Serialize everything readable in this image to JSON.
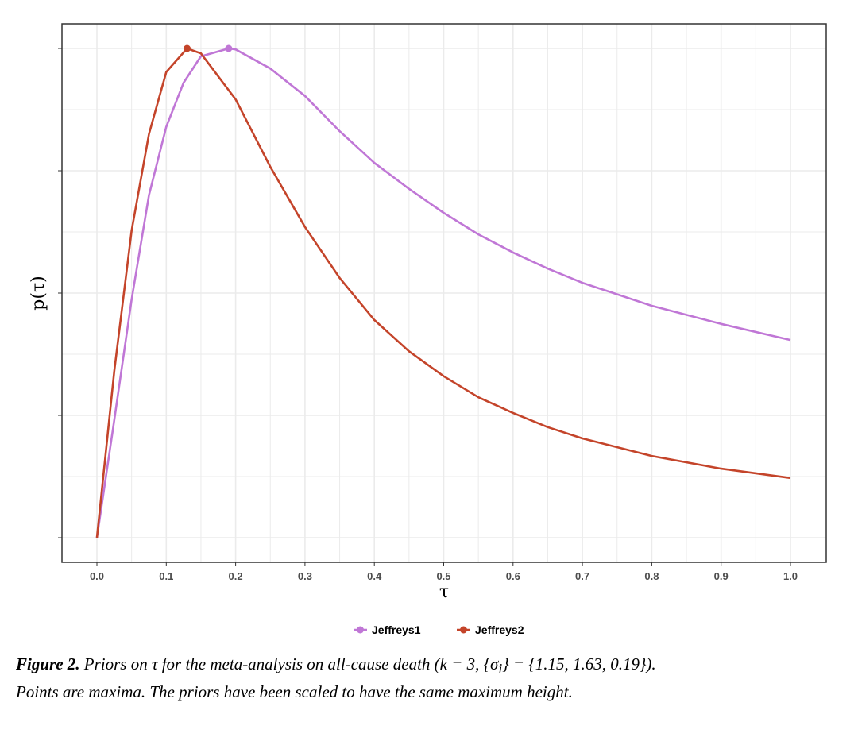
{
  "chart_data": {
    "type": "line",
    "title": "",
    "xlabel": "τ",
    "ylabel": "p(τ)",
    "xlim": [
      -0.05,
      1.05
    ],
    "ylim": [
      -0.04,
      1.04
    ],
    "x_ticks": [
      "0.0",
      "0.1",
      "0.2",
      "0.3",
      "0.4",
      "0.5",
      "0.6",
      "0.7",
      "0.8",
      "0.9",
      "1.0"
    ],
    "y_ticks_labeled": false,
    "grid": true,
    "legend_position": "bottom",
    "series": [
      {
        "name": "Jeffreys1",
        "color": "#C077D6",
        "x": [
          0,
          0.025,
          0.05,
          0.075,
          0.1,
          0.125,
          0.15,
          0.19,
          0.2,
          0.25,
          0.3,
          0.35,
          0.4,
          0.45,
          0.5,
          0.55,
          0.6,
          0.65,
          0.7,
          0.8,
          0.9,
          1.0
        ],
        "y": [
          0,
          0.24,
          0.487,
          0.7,
          0.84,
          0.93,
          0.984,
          1.0,
          0.998,
          0.959,
          0.903,
          0.831,
          0.766,
          0.713,
          0.664,
          0.62,
          0.583,
          0.55,
          0.521,
          0.474,
          0.437,
          0.404
        ],
        "max_point": {
          "x": 0.19,
          "y": 1.0
        }
      },
      {
        "name": "Jeffreys2",
        "color": "#C4442A",
        "x": [
          0,
          0.025,
          0.05,
          0.075,
          0.1,
          0.13,
          0.15,
          0.2,
          0.25,
          0.3,
          0.35,
          0.4,
          0.45,
          0.5,
          0.55,
          0.6,
          0.65,
          0.7,
          0.8,
          0.9,
          1.0
        ],
        "y": [
          0,
          0.34,
          0.628,
          0.825,
          0.952,
          1.0,
          0.99,
          0.896,
          0.758,
          0.635,
          0.531,
          0.445,
          0.381,
          0.33,
          0.287,
          0.255,
          0.226,
          0.203,
          0.167,
          0.141,
          0.122
        ],
        "max_point": {
          "x": 0.13,
          "y": 1.0
        }
      }
    ]
  },
  "caption": {
    "label": "Figure 2.",
    "text1": " Priors on τ for the meta-analysis on all-cause death (k = 3, {σ",
    "sub": "i",
    "text2": "} = {1.15, 1.63, 0.19}).",
    "text3": "Points are maxima. The priors have been scaled to have the same maximum height."
  }
}
